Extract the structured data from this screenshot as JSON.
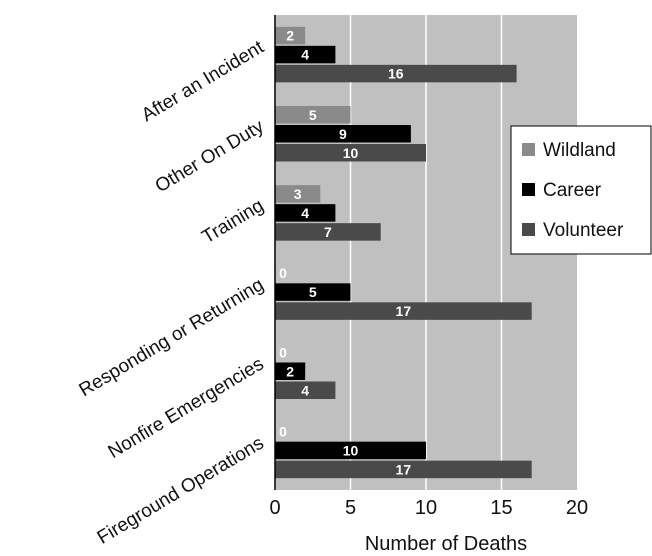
{
  "chart_data": {
    "type": "bar",
    "orientation": "horizontal",
    "categories": [
      "After an Incident",
      "Other On Duty",
      "Training",
      "Responding or Returning",
      "Nonfire Emergencies",
      "Fireground Operations"
    ],
    "series": [
      {
        "name": "Wildland",
        "values": [
          2,
          5,
          3,
          0,
          0,
          0
        ],
        "color": "#8a8a8a"
      },
      {
        "name": "Career",
        "values": [
          4,
          9,
          4,
          5,
          2,
          10
        ],
        "color": "#000000"
      },
      {
        "name": "Volunteer",
        "values": [
          16,
          10,
          7,
          17,
          4,
          17
        ],
        "color": "#4a4a4a"
      }
    ],
    "xlabel": "Number of Deaths",
    "xlim": [
      0,
      20
    ],
    "xticks": [
      0,
      5,
      10,
      15,
      20
    ],
    "grid": true,
    "plot_background": "#c0c0c0",
    "legend_position": "right"
  }
}
